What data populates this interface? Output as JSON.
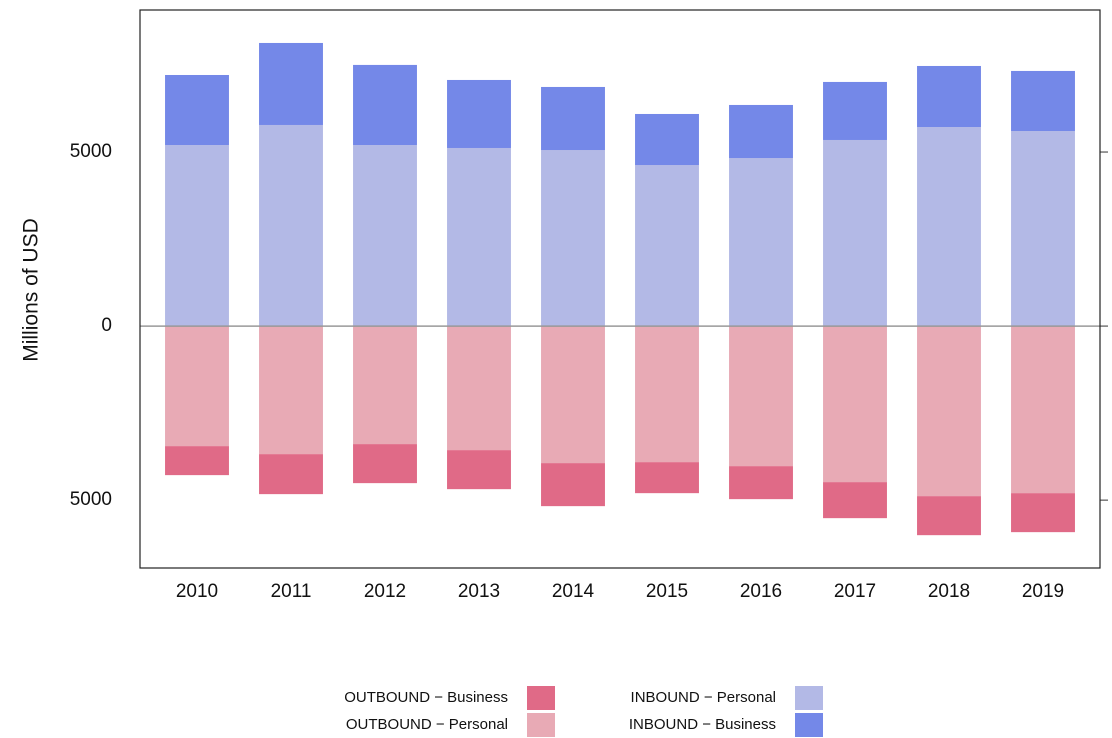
{
  "chart_data": {
    "type": "bar",
    "y_label": "Millions of USD",
    "categories": [
      "2010",
      "2011",
      "2012",
      "2013",
      "2014",
      "2015",
      "2016",
      "2017",
      "2018",
      "2019"
    ],
    "series": [
      {
        "name": "OUTBOUND − Business",
        "color": "#e06a87",
        "values": [
          -833,
          -1149,
          -1121,
          -1121,
          -1236,
          -891,
          -948,
          -1035,
          -1121,
          -1120
        ]
      },
      {
        "name": "OUTBOUND − Personal",
        "color": "#e8aab5",
        "values": [
          -3449,
          -3679,
          -3391,
          -3564,
          -3937,
          -3909,
          -4024,
          -4483,
          -4886,
          -4800
        ]
      },
      {
        "name": "INBOUND − Personal",
        "color": "#b3b9e6",
        "values": [
          5202,
          5777,
          5202,
          5116,
          5058,
          4627,
          4828,
          5346,
          5719,
          5604
        ]
      },
      {
        "name": "INBOUND − Business",
        "color": "#7488e8",
        "values": [
          2011,
          2356,
          2300,
          1954,
          1811,
          1466,
          1524,
          1667,
          1753,
          1725
        ]
      }
    ],
    "stacked": true,
    "ylim": [
      -6950,
      9080
    ],
    "yticks": [
      {
        "value": -5000,
        "label": "5000"
      },
      0,
      5000
    ],
    "grid": false,
    "legend": "bottom"
  }
}
